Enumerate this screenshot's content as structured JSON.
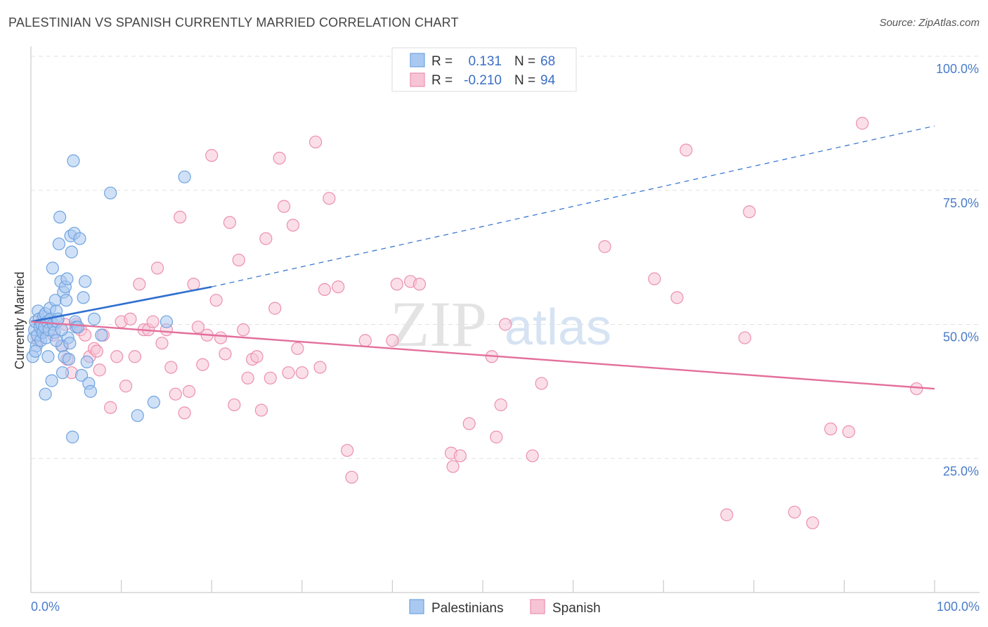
{
  "chart_data": {
    "type": "scatter",
    "title": "PALESTINIAN VS SPANISH CURRENTLY MARRIED CORRELATION CHART",
    "source": "Source: ZipAtlas.com",
    "xlabel": "",
    "ylabel": "Currently Married",
    "xlim": [
      0,
      100
    ],
    "ylim": [
      0,
      100
    ],
    "x_tick_labels": [
      "0.0%",
      "100.0%"
    ],
    "y_ticks": [
      {
        "value": 100,
        "label": "100.0%"
      },
      {
        "value": 75,
        "label": "75.0%"
      },
      {
        "value": 50,
        "label": "50.0%"
      },
      {
        "value": 25,
        "label": "25.0%"
      }
    ],
    "watermark": {
      "zip": "ZIP",
      "atlas": "atlas"
    },
    "legend_stats": [
      {
        "r_label": "R =",
        "r_value": "0.131",
        "n_label": "N =",
        "n_value": "68"
      },
      {
        "r_label": "R =",
        "r_value": "-0.210",
        "n_label": "N =",
        "n_value": "94"
      }
    ],
    "series": [
      {
        "name": "Palestinians",
        "color": "#6fa3e0",
        "fill": "#a9c9f0",
        "line_color": "#2f6fcf",
        "trend": {
          "x0": 0,
          "y0": 50.5,
          "x1": 20,
          "y1": 57.0,
          "dashed_to_x": 100,
          "dashed_to_y": 87.0
        },
        "points": [
          [
            0.3,
            47.5
          ],
          [
            0.4,
            49
          ],
          [
            0.5,
            50.5
          ],
          [
            0.6,
            46
          ],
          [
            0.7,
            48
          ],
          [
            0.8,
            52.5
          ],
          [
            0.9,
            51
          ],
          [
            1.0,
            49.5
          ],
          [
            1.1,
            47
          ],
          [
            1.2,
            50
          ],
          [
            1.3,
            48.5
          ],
          [
            1.4,
            51.5
          ],
          [
            1.5,
            49.5
          ],
          [
            1.6,
            52
          ],
          [
            1.7,
            47.5
          ],
          [
            1.8,
            50.5
          ],
          [
            1.9,
            44
          ],
          [
            2.0,
            49
          ],
          [
            2.1,
            53
          ],
          [
            2.2,
            51
          ],
          [
            2.3,
            39.5
          ],
          [
            2.4,
            60.5
          ],
          [
            2.5,
            50
          ],
          [
            2.6,
            48.5
          ],
          [
            2.7,
            54.5
          ],
          [
            2.8,
            52.5
          ],
          [
            2.9,
            50.5
          ],
          [
            3.0,
            51
          ],
          [
            3.1,
            65
          ],
          [
            3.2,
            70
          ],
          [
            3.3,
            58
          ],
          [
            3.4,
            46
          ],
          [
            3.5,
            41
          ],
          [
            3.6,
            56
          ],
          [
            3.7,
            44
          ],
          [
            3.8,
            57
          ],
          [
            3.9,
            54.5
          ],
          [
            4.0,
            58.5
          ],
          [
            4.1,
            47.5
          ],
          [
            4.2,
            43.5
          ],
          [
            4.3,
            46.5
          ],
          [
            4.4,
            66.5
          ],
          [
            4.5,
            63.5
          ],
          [
            4.6,
            29
          ],
          [
            4.7,
            80.5
          ],
          [
            4.8,
            67
          ],
          [
            4.9,
            50.5
          ],
          [
            5.0,
            49.5
          ],
          [
            5.2,
            49.5
          ],
          [
            5.4,
            66
          ],
          [
            5.6,
            40.5
          ],
          [
            5.8,
            55
          ],
          [
            6.0,
            58
          ],
          [
            6.2,
            43
          ],
          [
            6.4,
            39
          ],
          [
            6.6,
            37.5
          ],
          [
            7.0,
            51
          ],
          [
            7.8,
            48
          ],
          [
            8.8,
            74.5
          ],
          [
            11.8,
            33
          ],
          [
            13.6,
            35.5
          ],
          [
            15.0,
            50.5
          ],
          [
            17.0,
            77.5
          ],
          [
            0.2,
            44
          ],
          [
            1.6,
            37
          ],
          [
            2.8,
            47
          ],
          [
            3.4,
            49
          ],
          [
            0.5,
            45
          ]
        ]
      },
      {
        "name": "Spanish",
        "color": "#ec8fb0",
        "fill": "#f7c4d5",
        "line_color": "#e36f9a",
        "trend": {
          "x0": 0,
          "y0": 50.5,
          "x1": 100,
          "y1": 38.0
        },
        "points": [
          [
            0.8,
            47
          ],
          [
            1.0,
            50
          ],
          [
            1.5,
            49
          ],
          [
            2.5,
            48
          ],
          [
            3.5,
            46
          ],
          [
            3.8,
            50
          ],
          [
            4.0,
            43.5
          ],
          [
            4.5,
            41
          ],
          [
            5.0,
            50
          ],
          [
            5.5,
            49
          ],
          [
            6.0,
            48
          ],
          [
            6.5,
            44
          ],
          [
            7.0,
            45.5
          ],
          [
            7.3,
            45
          ],
          [
            7.6,
            41.5
          ],
          [
            8.0,
            48
          ],
          [
            8.8,
            34.5
          ],
          [
            9.5,
            44
          ],
          [
            10.0,
            50.5
          ],
          [
            10.5,
            38.5
          ],
          [
            11.0,
            51
          ],
          [
            11.5,
            44
          ],
          [
            12.0,
            57.5
          ],
          [
            12.5,
            49
          ],
          [
            13.0,
            49
          ],
          [
            13.5,
            50.5
          ],
          [
            14.0,
            60.5
          ],
          [
            14.5,
            46.5
          ],
          [
            15.0,
            49
          ],
          [
            15.5,
            42
          ],
          [
            16.0,
            37
          ],
          [
            16.5,
            70
          ],
          [
            17.0,
            33.5
          ],
          [
            17.5,
            37.5
          ],
          [
            18.0,
            57.5
          ],
          [
            18.5,
            49.5
          ],
          [
            19.0,
            42.5
          ],
          [
            19.5,
            48
          ],
          [
            20.0,
            81.5
          ],
          [
            20.5,
            54.5
          ],
          [
            21.0,
            47.5
          ],
          [
            21.5,
            44.5
          ],
          [
            22.0,
            69
          ],
          [
            22.5,
            35
          ],
          [
            23.0,
            62
          ],
          [
            23.5,
            49
          ],
          [
            24.0,
            40
          ],
          [
            24.5,
            43.5
          ],
          [
            25.0,
            44
          ],
          [
            25.5,
            34
          ],
          [
            26.0,
            66
          ],
          [
            26.5,
            40
          ],
          [
            27.0,
            53
          ],
          [
            27.5,
            81
          ],
          [
            28.0,
            72
          ],
          [
            28.5,
            41
          ],
          [
            29.0,
            68.5
          ],
          [
            29.5,
            45.5
          ],
          [
            30.0,
            41
          ],
          [
            31.5,
            84
          ],
          [
            32.0,
            42
          ],
          [
            32.5,
            56.5
          ],
          [
            33.0,
            73.5
          ],
          [
            34.0,
            57
          ],
          [
            35.0,
            26.5
          ],
          [
            37.0,
            47
          ],
          [
            35.5,
            21.5
          ],
          [
            40.0,
            47
          ],
          [
            40.5,
            57.5
          ],
          [
            42.0,
            58
          ],
          [
            43.0,
            57.5
          ],
          [
            46.5,
            26
          ],
          [
            46.7,
            23.5
          ],
          [
            47.5,
            25.5
          ],
          [
            48.5,
            31.5
          ],
          [
            51.0,
            44
          ],
          [
            51.5,
            29
          ],
          [
            52.0,
            35
          ],
          [
            52.5,
            50
          ],
          [
            55.5,
            25.5
          ],
          [
            56.5,
            39
          ],
          [
            63.5,
            64.5
          ],
          [
            69.0,
            58.5
          ],
          [
            71.5,
            55
          ],
          [
            72.5,
            82.5
          ],
          [
            77.0,
            14.5
          ],
          [
            79.0,
            47.5
          ],
          [
            79.5,
            71
          ],
          [
            84.5,
            15
          ],
          [
            86.5,
            13
          ],
          [
            88.5,
            30.5
          ],
          [
            90.5,
            30
          ],
          [
            98.0,
            38
          ],
          [
            92.0,
            87.5
          ]
        ]
      }
    ]
  }
}
